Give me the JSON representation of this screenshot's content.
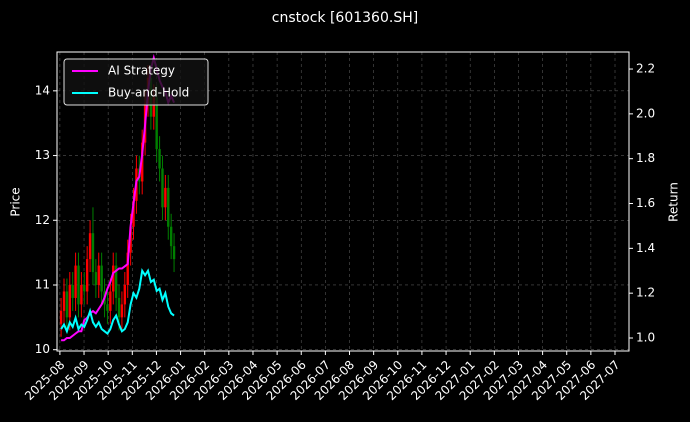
{
  "chart_data": {
    "type": "candlestick",
    "title": "cnstock [601360.SH]",
    "ylabel": "Price",
    "y2label": "Return",
    "x": [
      0.05,
      0.17,
      0.29,
      0.41,
      0.53,
      0.65,
      0.77,
      0.89,
      1.01,
      1.13,
      1.25,
      1.37,
      1.49,
      1.61,
      1.73,
      1.85,
      1.97,
      2.09,
      2.21,
      2.33,
      2.45,
      2.57,
      2.69,
      2.81,
      2.93,
      3.05,
      3.17,
      3.29,
      3.41,
      3.53,
      3.65,
      3.77,
      3.89,
      4.01,
      4.13,
      4.25,
      4.37,
      4.49,
      4.61,
      4.73
    ],
    "open": [
      10.4,
      10.6,
      10.9,
      10.5,
      11.0,
      10.8,
      11.3,
      10.7,
      11.0,
      10.9,
      11.4,
      11.8,
      11.2,
      11.0,
      11.3,
      10.9,
      10.7,
      10.6,
      10.9,
      11.3,
      10.8,
      10.5,
      10.7,
      11.0,
      11.5,
      11.9,
      12.3,
      12.8,
      12.6,
      13.2,
      13.8,
      14.2,
      13.6,
      13.9,
      13.1,
      12.8,
      12.2,
      12.5,
      11.9,
      11.6
    ],
    "high": [
      10.8,
      11.1,
      11.1,
      11.2,
      11.2,
      11.5,
      11.5,
      11.2,
      11.2,
      11.6,
      12.0,
      12.2,
      11.4,
      11.5,
      11.5,
      11.1,
      10.9,
      11.1,
      11.5,
      11.5,
      11.0,
      10.9,
      11.2,
      11.7,
      12.1,
      12.5,
      13.0,
      13.0,
      13.4,
      14.0,
      14.4,
      14.4,
      14.1,
      14.1,
      13.3,
      13.0,
      12.7,
      12.7,
      12.1,
      11.8
    ],
    "low": [
      10.2,
      10.4,
      10.3,
      10.3,
      10.6,
      10.6,
      10.5,
      10.5,
      10.7,
      10.7,
      11.2,
      11.0,
      10.8,
      10.8,
      10.7,
      10.5,
      10.4,
      10.4,
      10.7,
      10.6,
      10.3,
      10.3,
      10.5,
      10.8,
      11.3,
      11.7,
      12.1,
      12.4,
      12.4,
      13.0,
      13.6,
      13.4,
      13.4,
      12.9,
      12.6,
      12.0,
      12.0,
      11.7,
      11.4,
      11.2
    ],
    "close": [
      10.6,
      10.9,
      10.5,
      11.0,
      10.8,
      11.3,
      10.7,
      11.0,
      10.9,
      11.4,
      11.8,
      11.2,
      11.0,
      11.3,
      10.9,
      10.7,
      10.6,
      10.9,
      11.3,
      10.8,
      10.5,
      10.7,
      11.0,
      11.5,
      11.9,
      12.3,
      12.8,
      12.6,
      13.2,
      13.8,
      14.2,
      13.6,
      13.9,
      13.1,
      12.8,
      12.2,
      12.5,
      11.9,
      11.6,
      11.4
    ],
    "up_color": "#ff0000",
    "down_color": "#008000",
    "series": [
      {
        "name": "AI Strategy",
        "color": "#ff00ff",
        "axis": "y2",
        "values": [
          0.99,
          0.99,
          1.0,
          1.0,
          1.01,
          1.02,
          1.03,
          1.03,
          1.08,
          1.09,
          1.11,
          1.12,
          1.11,
          1.13,
          1.15,
          1.18,
          1.22,
          1.25,
          1.29,
          1.3,
          1.31,
          1.31,
          1.32,
          1.33,
          1.5,
          1.6,
          1.7,
          1.72,
          1.82,
          1.95,
          2.1,
          2.2,
          2.25,
          2.2,
          2.15,
          2.12,
          2.1,
          2.05,
          2.08,
          2.05
        ]
      },
      {
        "name": "Buy-and-Hold",
        "color": "#00ffff",
        "axis": "y2",
        "values": [
          1.04,
          1.06,
          1.03,
          1.07,
          1.05,
          1.09,
          1.04,
          1.06,
          1.05,
          1.08,
          1.12,
          1.07,
          1.05,
          1.07,
          1.04,
          1.03,
          1.02,
          1.04,
          1.08,
          1.1,
          1.06,
          1.03,
          1.04,
          1.07,
          1.15,
          1.2,
          1.18,
          1.22,
          1.3,
          1.28,
          1.3,
          1.25,
          1.26,
          1.21,
          1.22,
          1.17,
          1.2,
          1.14,
          1.11,
          1.1
        ]
      }
    ],
    "xlim": [
      -0.12,
      23.58
    ],
    "xticks": [
      {
        "value": 0,
        "label": "2025-08"
      },
      {
        "value": 1,
        "label": "2025-09"
      },
      {
        "value": 2,
        "label": "2025-10"
      },
      {
        "value": 3,
        "label": "2025-11"
      },
      {
        "value": 4,
        "label": "2025-12"
      },
      {
        "value": 5,
        "label": "2026-01"
      },
      {
        "value": 6,
        "label": "2026-02"
      },
      {
        "value": 7,
        "label": "2026-03"
      },
      {
        "value": 8,
        "label": "2026-04"
      },
      {
        "value": 9,
        "label": "2026-05"
      },
      {
        "value": 10,
        "label": "2026-06"
      },
      {
        "value": 11,
        "label": "2026-07"
      },
      {
        "value": 12,
        "label": "2026-08"
      },
      {
        "value": 13,
        "label": "2026-09"
      },
      {
        "value": 14,
        "label": "2026-10"
      },
      {
        "value": 15,
        "label": "2026-11"
      },
      {
        "value": 16,
        "label": "2026-12"
      },
      {
        "value": 17,
        "label": "2027-01"
      },
      {
        "value": 18,
        "label": "2027-02"
      },
      {
        "value": 19,
        "label": "2027-03"
      },
      {
        "value": 20,
        "label": "2027-04"
      },
      {
        "value": 21,
        "label": "2027-05"
      },
      {
        "value": 22,
        "label": "2027-06"
      },
      {
        "value": 23,
        "label": "2027-07"
      }
    ],
    "ylim": [
      9.98,
      14.6
    ],
    "yticks": [
      10,
      11,
      12,
      13,
      14
    ],
    "y2lim": [
      0.942,
      2.276
    ],
    "y2ticks": [
      {
        "value": 1,
        "label": "1.0"
      },
      1.2,
      1.4,
      1.6,
      1.8,
      {
        "value": 2,
        "label": "2.0"
      },
      2.2
    ],
    "grid": true,
    "legend": "upper left"
  }
}
